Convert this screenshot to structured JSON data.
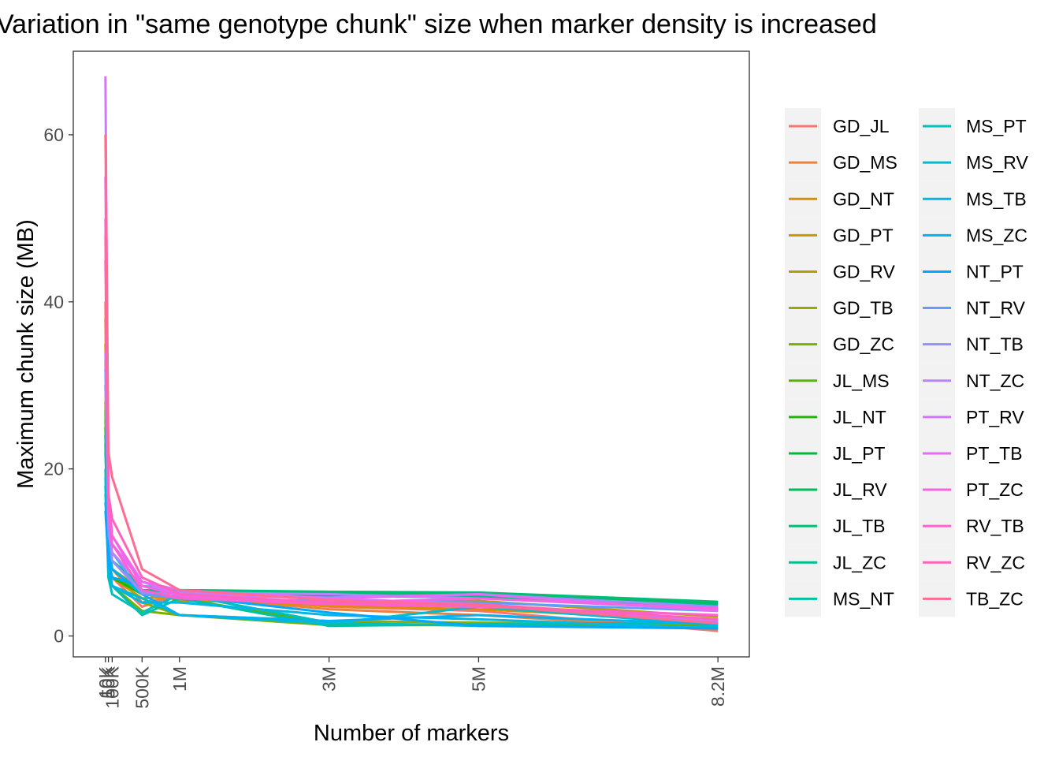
{
  "chart_data": {
    "type": "line",
    "title": "Variation in \"same genotype chunk\" size when marker density is increased",
    "xlabel": "Number of markers",
    "ylabel": "Maximum chunk size (MB)",
    "xlim": [
      -420000,
      8620000
    ],
    "ylim": [
      -2.5,
      70
    ],
    "x": [
      10000,
      50000,
      100000,
      500000,
      1000000,
      3000000,
      5000000,
      8200000
    ],
    "x_tick_values": [
      10000,
      50000,
      100000,
      500000,
      1000000,
      3000000,
      5000000,
      8200000
    ],
    "x_tick_labels": [
      "10K",
      "50K",
      "100K",
      "500K",
      "1M",
      "3M",
      "5M",
      "8.2M"
    ],
    "y_ticks": [
      0,
      20,
      40,
      60
    ],
    "y_tick_labels": [
      "0",
      "20",
      "40",
      "60"
    ],
    "grid": false,
    "legend_position": "right",
    "legend_columns": 2,
    "series": [
      {
        "name": "GD_JL",
        "color": "#F8766D",
        "values": [
          40,
          9,
          7,
          3.5,
          5.0,
          3.5,
          3.0,
          0.6
        ]
      },
      {
        "name": "GD_MS",
        "color": "#EC8239",
        "values": [
          38,
          10,
          8,
          4.0,
          4.8,
          3.2,
          2.5,
          0.8
        ]
      },
      {
        "name": "GD_NT",
        "color": "#DB8E00",
        "values": [
          35,
          11,
          8,
          5.0,
          4.5,
          3.6,
          3.2,
          1.8
        ]
      },
      {
        "name": "GD_PT",
        "color": "#C79800",
        "values": [
          33,
          9,
          7,
          4.5,
          4.8,
          3.9,
          3.8,
          1.6
        ]
      },
      {
        "name": "GD_RV",
        "color": "#AFA100",
        "values": [
          30,
          10,
          8,
          5.5,
          4.2,
          4.0,
          4.2,
          2.3
        ]
      },
      {
        "name": "GD_TB",
        "color": "#96A900",
        "values": [
          28,
          8,
          6,
          4.0,
          2.5,
          1.8,
          1.6,
          1.4
        ]
      },
      {
        "name": "GD_ZC",
        "color": "#7AAF00",
        "values": [
          26,
          7,
          6,
          3.0,
          2.5,
          1.3,
          1.3,
          1.0
        ]
      },
      {
        "name": "JL_MS",
        "color": "#5EB300",
        "values": [
          27,
          8,
          7,
          5.5,
          4.5,
          1.5,
          1.3,
          1.2
        ]
      },
      {
        "name": "JL_NT",
        "color": "#1FB700",
        "values": [
          25,
          9,
          7,
          5.0,
          4.6,
          5.0,
          4.8,
          3.5
        ]
      },
      {
        "name": "JL_PT",
        "color": "#00BA38",
        "values": [
          24,
          11,
          8,
          5.0,
          5.2,
          4.8,
          4.6,
          3.8
        ]
      },
      {
        "name": "JL_RV",
        "color": "#00BC59",
        "values": [
          23,
          10,
          9,
          5.5,
          5.3,
          5.2,
          5.0,
          4.0
        ]
      },
      {
        "name": "JL_TB",
        "color": "#00BE76",
        "values": [
          24,
          12,
          9,
          6.0,
          5.5,
          5.3,
          5.2,
          4.1
        ]
      },
      {
        "name": "JL_ZC",
        "color": "#00BF8F",
        "values": [
          22,
          11,
          8,
          5.2,
          5.4,
          5.0,
          4.8,
          3.7
        ]
      },
      {
        "name": "MS_NT",
        "color": "#00C0A7",
        "values": [
          20,
          8,
          6,
          2.5,
          4.5,
          1.2,
          1.4,
          1.6
        ]
      },
      {
        "name": "MS_PT",
        "color": "#00BFBD",
        "values": [
          18,
          7,
          5,
          2.8,
          5.0,
          1.6,
          1.2,
          1.1
        ]
      },
      {
        "name": "MS_RV",
        "color": "#00BCD1",
        "values": [
          17,
          9,
          6,
          4.5,
          2.5,
          1.5,
          3.5,
          1.3
        ]
      },
      {
        "name": "MS_TB",
        "color": "#00B8E3",
        "values": [
          19,
          8,
          6,
          4.0,
          4.0,
          2.5,
          2.0,
          0.9
        ]
      },
      {
        "name": "MS_ZC",
        "color": "#00B1F3",
        "values": [
          16,
          10,
          8,
          5.0,
          2.5,
          1.8,
          2.5,
          1.4
        ]
      },
      {
        "name": "NT_PT",
        "color": "#00A8FF",
        "values": [
          15,
          9,
          7,
          6.0,
          4.8,
          2.8,
          1.2,
          0.9
        ]
      },
      {
        "name": "NT_RV",
        "color": "#619CFF",
        "values": [
          32,
          12,
          10,
          5.0,
          4.5,
          4.2,
          4.0,
          3.0
        ]
      },
      {
        "name": "NT_TB",
        "color": "#9590FF",
        "values": [
          30,
          13,
          9,
          5.2,
          5.0,
          4.6,
          5.0,
          3.5
        ]
      },
      {
        "name": "NT_ZC",
        "color": "#B983FF",
        "values": [
          34,
          14,
          10,
          6.0,
          5.2,
          5.0,
          4.5,
          3.2
        ]
      },
      {
        "name": "PT_RV",
        "color": "#D376FF",
        "values": [
          67,
          15,
          11,
          6.5,
          5.0,
          4.5,
          3.8,
          1.8
        ]
      },
      {
        "name": "PT_TB",
        "color": "#E76BF3",
        "values": [
          55,
          16,
          12,
          6.5,
          5.5,
          4.5,
          5.0,
          3.0
        ]
      },
      {
        "name": "PT_ZC",
        "color": "#F564E3",
        "values": [
          50,
          17,
          12,
          6.0,
          4.8,
          4.0,
          4.5,
          3.3
        ]
      },
      {
        "name": "RV_TB",
        "color": "#FD61D1",
        "values": [
          45,
          15,
          11,
          5.5,
          4.5,
          3.8,
          3.5,
          2.5
        ]
      },
      {
        "name": "RV_ZC",
        "color": "#FF62BC",
        "values": [
          48,
          17,
          14,
          7.0,
          5.0,
          4.0,
          3.8,
          2.0
        ]
      },
      {
        "name": "TB_ZC",
        "color": "#FF6C91",
        "values": [
          60,
          22,
          19,
          8.0,
          5.5,
          4.3,
          3.7,
          1.5
        ]
      }
    ]
  }
}
